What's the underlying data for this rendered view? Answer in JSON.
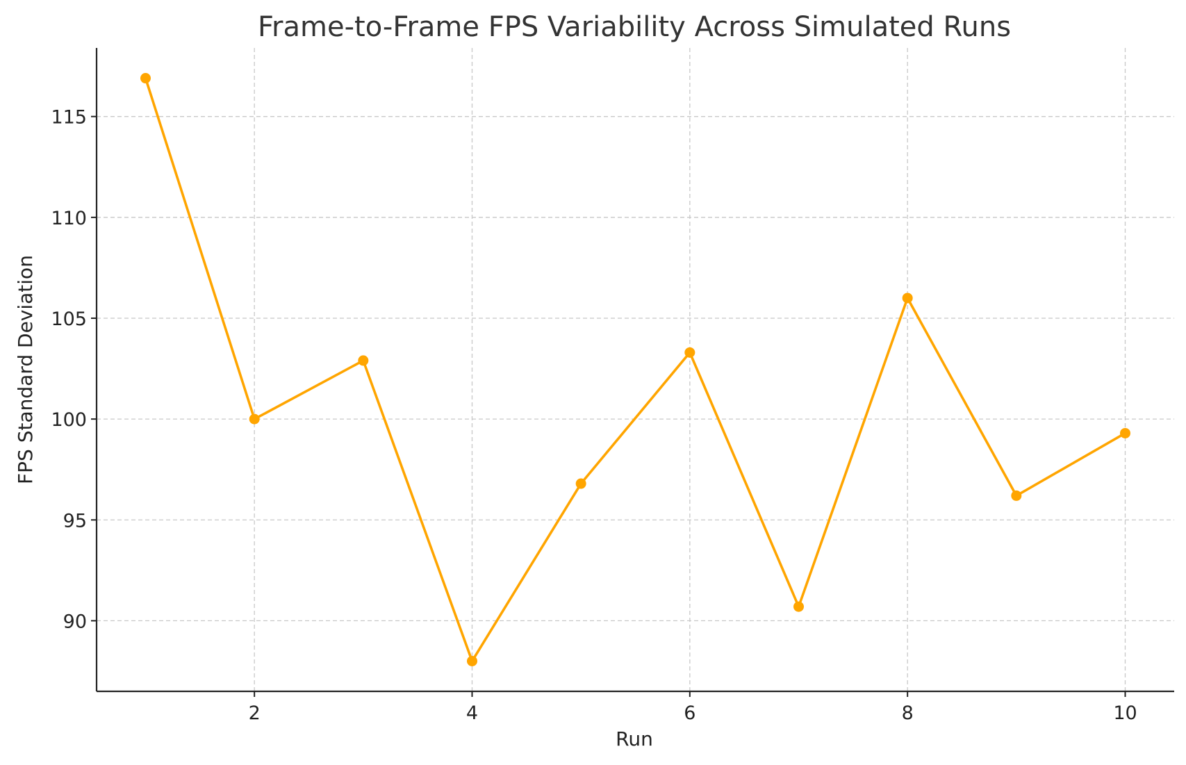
{
  "chart_data": {
    "type": "line",
    "title": "Frame-to-Frame FPS Variability Across Simulated Runs",
    "xlabel": "Run",
    "ylabel": "FPS Standard Deviation",
    "x": [
      1,
      2,
      3,
      4,
      5,
      6,
      7,
      8,
      9,
      10
    ],
    "series": [
      {
        "values": [
          116.9,
          100.0,
          102.9,
          88.0,
          96.8,
          103.3,
          90.7,
          106.0,
          96.2,
          99.3
        ],
        "color": "#FFA500",
        "marker": "circle"
      }
    ],
    "xlim": [
      0.55,
      10.45
    ],
    "ylim": [
      86.5,
      118.4
    ],
    "xticks": [
      2,
      4,
      6,
      8,
      10
    ],
    "xtick_labels": [
      "2",
      "4",
      "6",
      "8",
      "10"
    ],
    "yticks": [
      90,
      95,
      100,
      105,
      110,
      115
    ],
    "ytick_labels": [
      "90",
      "95",
      "100",
      "105",
      "110",
      "115"
    ],
    "grid": true,
    "legend": "none"
  }
}
